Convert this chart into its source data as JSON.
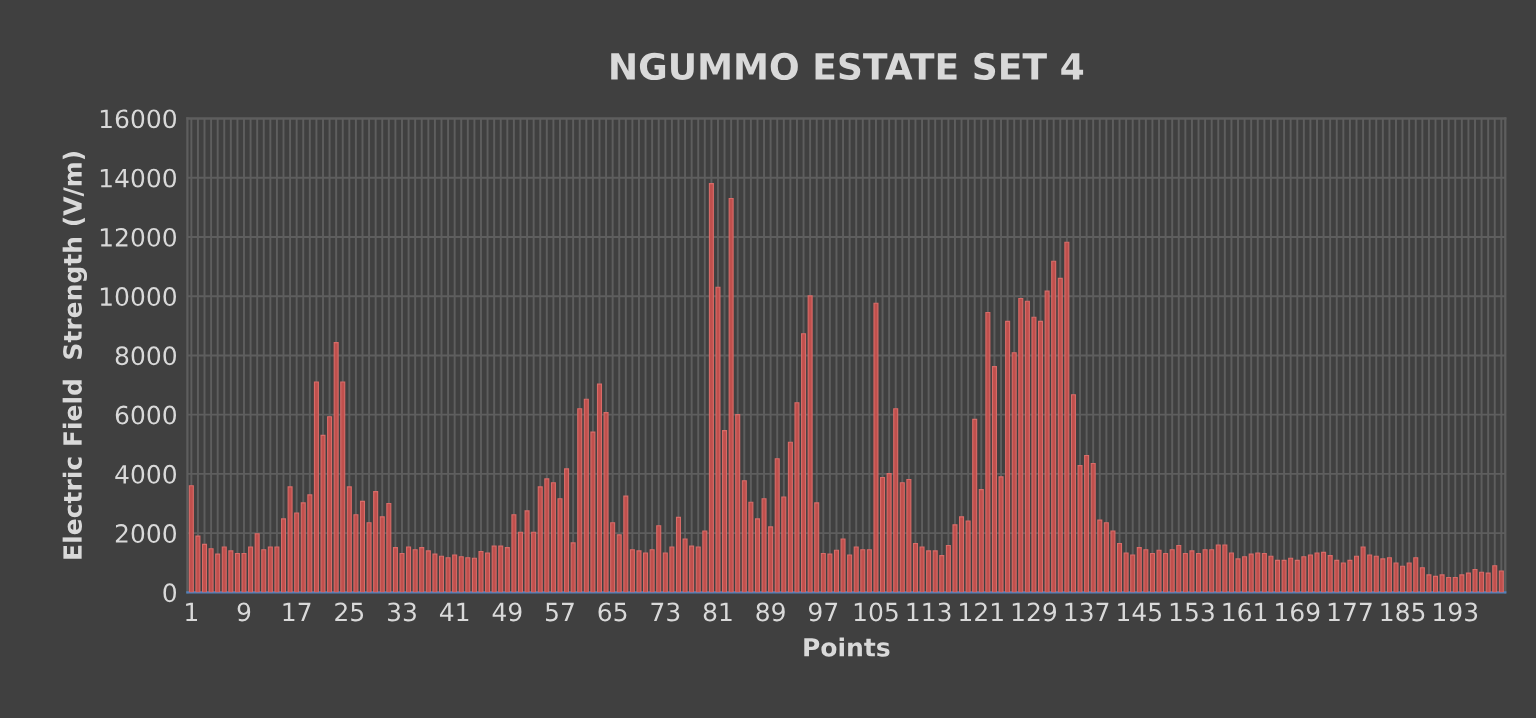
{
  "chart_data": {
    "type": "bar",
    "title": "NGUMMO ESTATE SET 4",
    "xlabel": "Points",
    "ylabel": "Electric Field  Strength (V/m)",
    "categories": [
      "1",
      null,
      null,
      null,
      null,
      null,
      null,
      null,
      "9",
      null,
      null,
      null,
      null,
      null,
      null,
      null,
      "17",
      null,
      null,
      null,
      null,
      null,
      null,
      null,
      "25",
      null,
      null,
      null,
      null,
      null,
      null,
      null,
      "33",
      null,
      null,
      null,
      null,
      null,
      null,
      null,
      "41",
      null,
      null,
      null,
      null,
      null,
      null,
      null,
      "49",
      null,
      null,
      null,
      null,
      null,
      null,
      null,
      "57",
      null,
      null,
      null,
      null,
      null,
      null,
      null,
      "65",
      null,
      null,
      null,
      null,
      null,
      null,
      null,
      "73",
      null,
      null,
      null,
      null,
      null,
      null,
      null,
      "81",
      null,
      null,
      null,
      null,
      null,
      null,
      null,
      "89",
      null,
      null,
      null,
      null,
      null,
      null,
      null,
      "97",
      null,
      null,
      null,
      null,
      null,
      null,
      null,
      "105",
      null,
      null,
      null,
      null,
      null,
      null,
      null,
      "113",
      null,
      null,
      null,
      null,
      null,
      null,
      null,
      "121",
      null,
      null,
      null,
      null,
      null,
      null,
      null,
      "129",
      null,
      null,
      null,
      null,
      null,
      null,
      null,
      "137",
      null,
      null,
      null,
      null,
      null,
      null,
      null,
      "145",
      null,
      null,
      null,
      null,
      null,
      null,
      null,
      "153",
      null,
      null,
      null,
      null,
      null,
      null,
      null,
      "161",
      null,
      null,
      null,
      null,
      null,
      null,
      null,
      "169",
      null,
      null,
      null,
      null,
      null,
      null,
      null,
      "177",
      null,
      null,
      null,
      null,
      null,
      null,
      null,
      "185",
      null,
      null,
      null,
      null,
      null,
      null,
      null,
      "193",
      null,
      null,
      null,
      null,
      null,
      null,
      null
    ],
    "values": [
      3600,
      1900,
      1620,
      1470,
      1290,
      1530,
      1400,
      1310,
      1310,
      1530,
      1980,
      1440,
      1530,
      1530,
      2480,
      3560,
      2680,
      3020,
      3290,
      7100,
      5300,
      5930,
      8430,
      7100,
      3560,
      2620,
      3070,
      2350,
      3400,
      2550,
      3000,
      1510,
      1310,
      1530,
      1440,
      1510,
      1400,
      1290,
      1220,
      1170,
      1260,
      1200,
      1170,
      1150,
      1380,
      1330,
      1560,
      1560,
      1510,
      2620,
      2030,
      2750,
      2030,
      3560,
      3830,
      3700,
      3160,
      4170,
      1670,
      6200,
      6520,
      5410,
      7030,
      6070,
      2350,
      1940,
      3250,
      1440,
      1400,
      1330,
      1440,
      2250,
      1330,
      1530,
      2530,
      1800,
      1560,
      1530,
      2070,
      13800,
      10300,
      5460,
      13300,
      6000,
      3770,
      3040,
      2480,
      3160,
      2210,
      4510,
      3220,
      5070,
      6400,
      8730,
      10010,
      3020,
      1310,
      1290,
      1420,
      1800,
      1260,
      1530,
      1440,
      1440,
      9760,
      3880,
      4010,
      6200,
      3700,
      3810,
      1650,
      1530,
      1400,
      1400,
      1240,
      1580,
      2280,
      2550,
      2410,
      5840,
      3470,
      9450,
      7620,
      3900,
      9150,
      8090,
      9920,
      9830,
      9290,
      9150,
      10170,
      11180,
      10600,
      11820,
      6670,
      4280,
      4620,
      4350,
      2440,
      2350,
      2070,
      1650,
      1330,
      1260,
      1510,
      1440,
      1310,
      1420,
      1310,
      1440,
      1580,
      1310,
      1400,
      1310,
      1440,
      1440,
      1600,
      1600,
      1330,
      1130,
      1200,
      1290,
      1330,
      1310,
      1220,
      1080,
      1080,
      1150,
      1080,
      1200,
      1260,
      1330,
      1350,
      1240,
      1080,
      990,
      1080,
      1220,
      1530,
      1260,
      1220,
      1130,
      1170,
      990,
      880,
      990,
      1170,
      830,
      590,
      540,
      590,
      500,
      500,
      590,
      650,
      770,
      680,
      650,
      900,
      720
    ],
    "color": "#c0504d",
    "ylim": [
      0,
      16000
    ],
    "yticks": [
      0,
      2000,
      4000,
      6000,
      8000,
      10000,
      12000,
      14000,
      16000
    ],
    "grid": true
  }
}
